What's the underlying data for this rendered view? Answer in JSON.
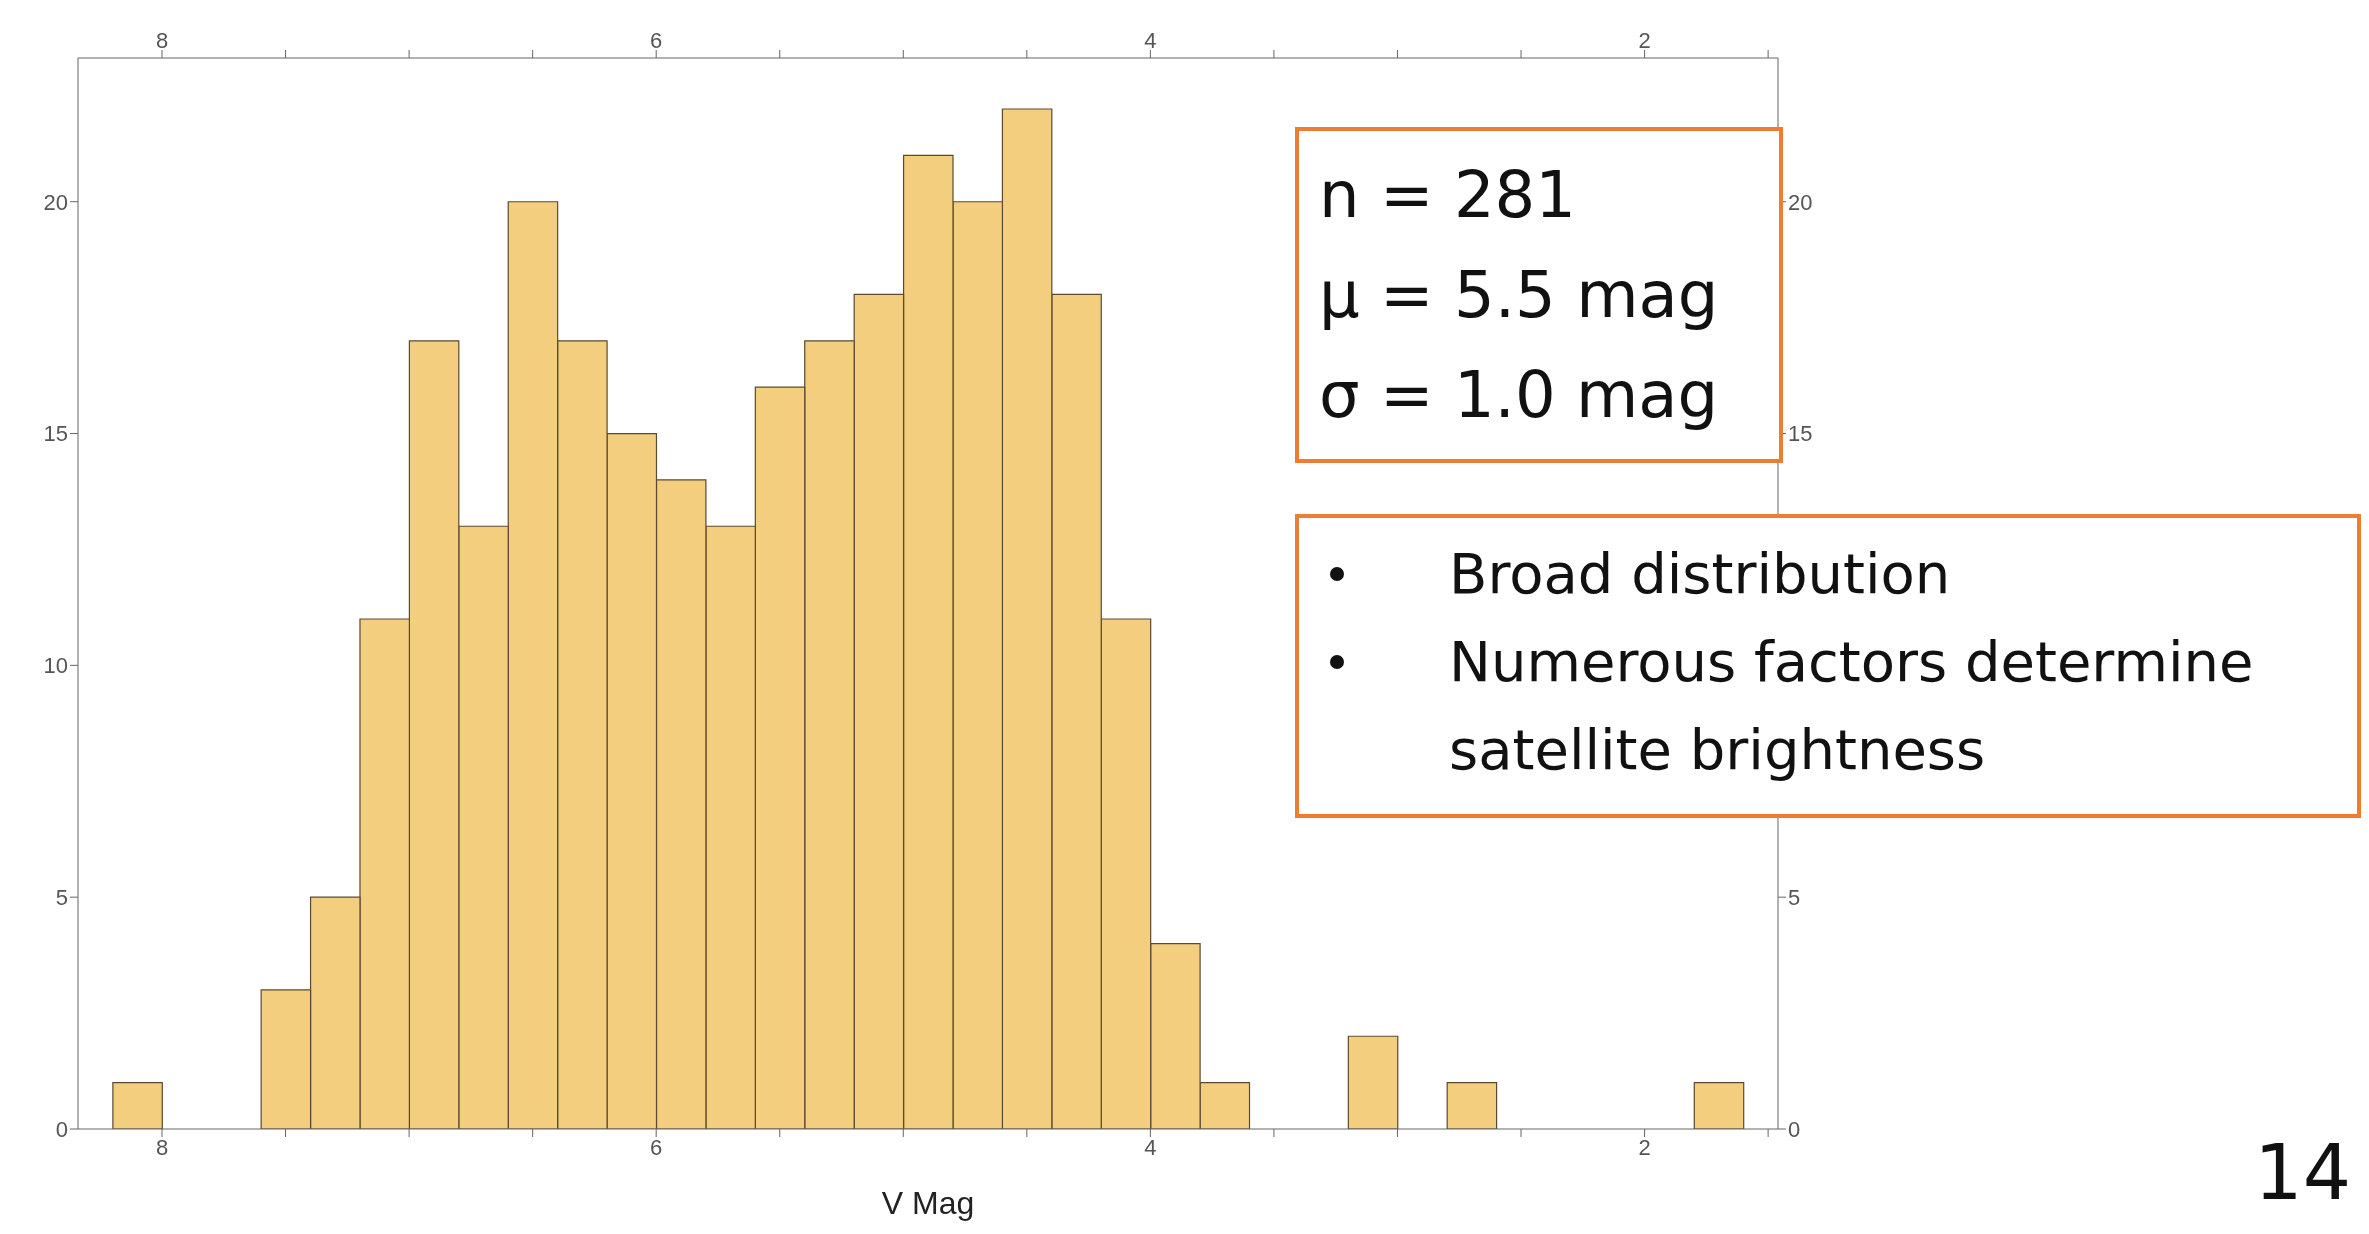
{
  "chart_data": {
    "type": "histogram",
    "xlabel": "V Mag",
    "bins": [
      1.6,
      1.8,
      2.0,
      2.2,
      2.4,
      2.6,
      2.8,
      3.0,
      3.2,
      3.4,
      3.6,
      3.8,
      4.0,
      4.2,
      4.4,
      4.6,
      4.8,
      5.0,
      5.2,
      5.4,
      5.6,
      5.8,
      6.0,
      6.2,
      6.4,
      6.6,
      6.8,
      7.0,
      7.2,
      7.4,
      7.6,
      7.8,
      8.0,
      8.2
    ],
    "values": [
      1,
      0,
      0,
      0,
      0,
      1,
      0,
      2,
      0,
      0,
      1,
      4,
      11,
      18,
      22,
      20,
      21,
      18,
      17,
      16,
      13,
      14,
      15,
      17,
      20,
      13,
      17,
      11,
      5,
      3,
      0,
      0,
      1
    ],
    "color": "#f4ce7f",
    "xlim": [
      8.34,
      1.46
    ],
    "xticks": [
      8,
      {
        "value": 7.5,
        "label": null
      },
      {
        "value": 7,
        "label": null
      },
      {
        "value": 6.5,
        "label": null
      },
      6,
      {
        "value": 5.5,
        "label": null
      },
      {
        "value": 5,
        "label": null
      },
      {
        "value": 4.5,
        "label": null
      },
      4,
      {
        "value": 3.5,
        "label": null
      },
      {
        "value": 3,
        "label": null
      },
      {
        "value": 2.5,
        "label": null
      },
      2,
      {
        "value": 1.5,
        "label": null
      }
    ],
    "x2lim": [
      8.34,
      1.46
    ],
    "x2ticks": [
      8,
      {
        "value": 7.5,
        "label": null
      },
      {
        "value": 7,
        "label": null
      },
      {
        "value": 6.5,
        "label": null
      },
      6,
      {
        "value": 5.5,
        "label": null
      },
      {
        "value": 5,
        "label": null
      },
      {
        "value": 4.5,
        "label": null
      },
      4,
      {
        "value": 3.5,
        "label": null
      },
      {
        "value": 3,
        "label": null
      },
      {
        "value": 2.5,
        "label": null
      },
      2,
      {
        "value": 1.5,
        "label": null
      }
    ],
    "ylim": [
      0,
      23.1
    ],
    "yticks": [
      0,
      5,
      10,
      15,
      20
    ],
    "y2lim": [
      0,
      23.1
    ],
    "y2ticks": [
      0,
      5,
      15,
      20
    ],
    "grid": false,
    "legend": false,
    "annotations": [
      "n = 281",
      "μ = 5.5 mag",
      "σ = 1.0 mag",
      "Broad distribution",
      "Numerous factors determine satellite brightness",
      "14"
    ]
  }
}
